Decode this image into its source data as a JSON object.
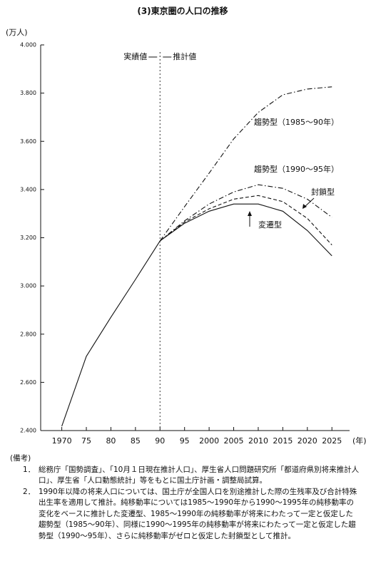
{
  "chart_data": {
    "type": "line",
    "title": "(3)東京圏の人口の推移",
    "y_label": "(万人)",
    "x_label": "(年)",
    "annotations": [
      "実績値",
      "推計値"
    ],
    "x": [
      1970,
      1975,
      1980,
      1985,
      1990,
      1995,
      2000,
      2005,
      2010,
      2015,
      2020,
      2025
    ],
    "xlim": [
      1965.7,
      2028.6
    ],
    "xticks": [
      1970,
      {
        "value": 1975,
        "label": "75"
      },
      {
        "value": 1980,
        "label": "80"
      },
      {
        "value": 1985,
        "label": "85"
      },
      {
        "value": 1990,
        "label": "90"
      },
      {
        "value": 1995,
        "label": "95"
      },
      2000,
      2005,
      2010,
      2015,
      2020,
      2025
    ],
    "ylim": [
      2400,
      4000
    ],
    "yticks": [
      {
        "value": 2400,
        "label": "2.400"
      },
      {
        "value": 2600,
        "label": "2.600"
      },
      {
        "value": 2800,
        "label": "2.800"
      },
      {
        "value": 3000,
        "label": "3.000"
      },
      {
        "value": 3200,
        "label": "3.200"
      },
      {
        "value": 3400,
        "label": "3.400"
      },
      {
        "value": 3600,
        "label": "3.600"
      },
      {
        "value": 3800,
        "label": "3.800"
      },
      {
        "value": 4000,
        "label": "4.000"
      }
    ],
    "grid": false,
    "series": [
      {
        "name": "実績値",
        "color": "#111111",
        "line_style": "solid",
        "values": [
          2418,
          2708,
          2870,
          3027,
          3187,
          null,
          null,
          null,
          null,
          null,
          null,
          null
        ]
      },
      {
        "name": "趨勢型（1985～90年）",
        "color": "#111111",
        "line_style": "dashdot",
        "values": [
          null,
          null,
          null,
          null,
          3187,
          3329,
          3468,
          3610,
          3720,
          3793,
          3817,
          3826
        ]
      },
      {
        "name": "趨勢型（1990～95年）",
        "color": "#111111",
        "line_style": "dashdot",
        "values": [
          null,
          null,
          null,
          null,
          3187,
          3270,
          3340,
          3390,
          3420,
          3405,
          3360,
          3285
        ]
      },
      {
        "name": "封鎖型",
        "color": "#111111",
        "line_style": "dashed",
        "values": [
          null,
          null,
          null,
          null,
          3187,
          3265,
          3320,
          3360,
          3375,
          3350,
          3280,
          3170
        ]
      },
      {
        "name": "変遷型",
        "color": "#111111",
        "line_style": "solid",
        "values": [
          null,
          null,
          null,
          null,
          3187,
          3260,
          3310,
          3340,
          3340,
          3310,
          3230,
          3125
        ]
      }
    ]
  },
  "notes": {
    "heading": "(備考)",
    "items": [
      {
        "number": "1．",
        "text": "総務庁「国勢調査」、「10月１日現在推計人口」、厚生省人口問題研究所「都道府県別将来推計人口」、厚生省「人口動態統計」等をもとに国土庁計画・調整局試算。"
      },
      {
        "number": "2．",
        "text": "1990年以降の将来人口については、国土庁が全国人口を別途推計した際の生残率及び合計特殊出生率を適用して推計。純移動率については1985～1990年から1990～1995年の純移動率の変化をベースに推計した変遷型、1985～1990年の純移動率が将来にわたって一定と仮定した趨勢型（1985～90年）、同様に1990～1995年の純移動率が将来にわたって一定と仮定した趨勢型（1990～95年）、さらに純移動率がゼロと仮定した封鎖型として推計。"
      }
    ]
  }
}
